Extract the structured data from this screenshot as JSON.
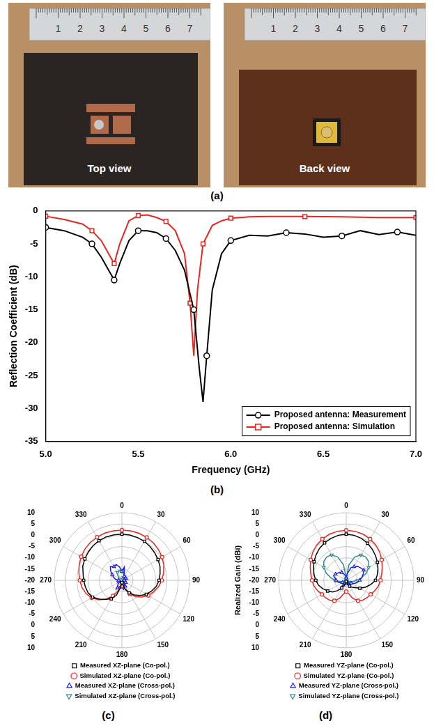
{
  "figure": {
    "panel_a": {
      "title": "(a)",
      "photos": [
        {
          "caption": "Top view",
          "ruler_labels": [
            1,
            2,
            3,
            4,
            5,
            6,
            7
          ]
        },
        {
          "caption": "Back view",
          "ruler_labels": [
            1,
            2,
            3,
            4,
            5,
            6,
            7
          ]
        }
      ]
    }
  },
  "chart_data": [
    {
      "type": "line",
      "title": "(b)",
      "xlabel": "Frequency (GHz)",
      "ylabel": "Reflection Coefficient (dB)",
      "xlim": [
        5,
        7
      ],
      "xticks": [
        {
          "value": 5,
          "label": "5.0"
        },
        {
          "value": 5.5,
          "label": "5.5"
        },
        {
          "value": 6,
          "label": "6.0"
        },
        {
          "value": 6.5,
          "label": "6.5"
        },
        {
          "value": 7,
          "label": "7.0"
        }
      ],
      "ylim": [
        -35,
        0
      ],
      "yticks": [
        -35,
        -30,
        -25,
        -20,
        -15,
        -10,
        -5,
        0
      ],
      "grid": false,
      "legend": "lower right",
      "series": [
        {
          "name": "Proposed antenna: Measurement",
          "color": "#000000",
          "marker": "circle",
          "line_style": "solid",
          "x": [
            5.0,
            5.1,
            5.2,
            5.25,
            5.3,
            5.35,
            5.37,
            5.4,
            5.45,
            5.5,
            5.55,
            5.6,
            5.65,
            5.7,
            5.75,
            5.8,
            5.83,
            5.85,
            5.87,
            5.9,
            5.95,
            6.0,
            6.1,
            6.2,
            6.3,
            6.4,
            6.5,
            6.6,
            6.7,
            6.8,
            6.9,
            7.0
          ],
          "values": [
            -2.5,
            -3,
            -4,
            -5,
            -7,
            -9.5,
            -10.5,
            -8,
            -4.5,
            -3,
            -3,
            -3.3,
            -4.2,
            -6,
            -9,
            -15,
            -24,
            -29,
            -22,
            -12,
            -6.5,
            -4.5,
            -3.7,
            -3.8,
            -3.3,
            -3.5,
            -4,
            -3.8,
            -3,
            -3.6,
            -3.2,
            -3.7
          ]
        },
        {
          "name": "Proposed antenna: Simulation",
          "color": "#e8261e",
          "marker": "square",
          "line_style": "solid",
          "x": [
            5.0,
            5.1,
            5.2,
            5.25,
            5.3,
            5.35,
            5.37,
            5.4,
            5.45,
            5.5,
            5.55,
            5.6,
            5.65,
            5.7,
            5.75,
            5.78,
            5.8,
            5.82,
            5.85,
            5.9,
            5.95,
            6.0,
            6.1,
            6.2,
            6.4,
            6.6,
            6.8,
            7.0
          ],
          "values": [
            -0.8,
            -1.3,
            -2,
            -3,
            -4.5,
            -7,
            -8,
            -5,
            -1.5,
            -0.7,
            -0.6,
            -1,
            -1.6,
            -3,
            -6.5,
            -14,
            -22,
            -12,
            -5,
            -2.2,
            -1.5,
            -1.1,
            -0.9,
            -0.85,
            -0.85,
            -0.9,
            -1.0,
            -1.0
          ]
        }
      ]
    },
    {
      "type": "radar",
      "title": "(c)",
      "categories": [
        "0",
        null,
        null,
        "30",
        null,
        null,
        "60",
        null,
        null,
        "90",
        null,
        null,
        "120",
        null,
        null,
        "150",
        null,
        null,
        "180",
        null,
        null,
        "210",
        null,
        null,
        "240",
        null,
        null,
        "270",
        null,
        null,
        "300",
        null,
        null,
        "330",
        null,
        null
      ],
      "ylim": [
        -20,
        10
      ],
      "yticks": [
        -20,
        -15,
        -10,
        -5,
        0,
        5,
        10
      ],
      "grid": true,
      "legend": "bottom",
      "series": [
        {
          "name": "Measured XZ-plane (Co-pol.)",
          "color": "#000000",
          "marker": "square",
          "line_style": "solid",
          "values": [
            0.5,
            0.4,
            0.2,
            0,
            -0.5,
            -1,
            -1.5,
            -2,
            -2.8,
            -3.5,
            -4.5,
            -6,
            -7.5,
            -9.5,
            -11.5,
            -13.5,
            -16,
            -18,
            -19,
            -17,
            -13,
            -10.5,
            -9,
            -7,
            -5,
            -4,
            -3.5,
            -3,
            -2.5,
            -1.5,
            -1,
            -0.5,
            0,
            0.3,
            0.5,
            0.5
          ]
        },
        {
          "name": "Simulated XZ-plane (Co-pol.)",
          "color": "#e8261e",
          "marker": "circle",
          "line_style": "solid",
          "values": [
            2.3,
            2.3,
            2.2,
            2.0,
            1.7,
            1.2,
            0.6,
            -0.2,
            -1.2,
            -2.3,
            -3.5,
            -5,
            -6.5,
            -8.5,
            -10.5,
            -13,
            -15.5,
            -17,
            -17.5,
            -17,
            -15,
            -12,
            -9,
            -6.5,
            -4.5,
            -3,
            -2,
            -1.3,
            -0.6,
            0.2,
            0.9,
            1.5,
            1.9,
            2.1,
            2.3,
            2.3
          ]
        },
        {
          "name": "Measured XZ-plane (Cross-pol.)",
          "color": "#1f1fe0",
          "marker": "triangle",
          "line_style": "solid",
          "values": [
            -16,
            -14,
            -17,
            -18,
            -17.5,
            -18.5,
            -18,
            -19,
            -18,
            -19,
            -18.5,
            -19,
            -18,
            -19,
            -18.5,
            -17,
            -18,
            -16,
            -17,
            -16.5,
            -17,
            -16,
            -17,
            -18,
            -18.5,
            -19,
            -18,
            -18.5,
            -17,
            -16,
            -15,
            -13.5,
            -12,
            -13,
            -12.5,
            -14
          ]
        },
        {
          "name": "Simulated XZ-plane (Cross-pol.)",
          "color": "#2f8f8a",
          "marker": "triangle_down",
          "line_style": "solid",
          "values": [
            -16,
            -16.5,
            -17.5,
            -18.5,
            -19,
            -19.5,
            -19.5,
            -19.8,
            -19.8,
            -19.8,
            -19.8,
            -19.8,
            -19.5,
            -19.5,
            -19.3,
            -19.3,
            -19.5,
            -19.2,
            -19,
            -19.2,
            -19.5,
            -19.3,
            -19.5,
            -19.8,
            -19.8,
            -19.8,
            -19.8,
            -19.8,
            -19.5,
            -19.5,
            -19,
            -18.5,
            -17,
            -16,
            -15.5,
            -15.5
          ]
        }
      ]
    },
    {
      "type": "radar",
      "title": "(d)",
      "ylabel": "Realized Gain (dBi)",
      "categories": [
        "0",
        null,
        null,
        "30",
        null,
        null,
        "60",
        null,
        null,
        "90",
        null,
        null,
        "120",
        null,
        null,
        "150",
        null,
        null,
        "180",
        null,
        null,
        "210",
        null,
        null,
        "240",
        null,
        null,
        "270",
        null,
        null,
        "300",
        null,
        null,
        "330",
        null,
        null
      ],
      "ylim": [
        -20,
        10
      ],
      "yticks": [
        -20,
        -15,
        -10,
        -5,
        0,
        5,
        10
      ],
      "grid": true,
      "legend": "bottom",
      "series": [
        {
          "name": "Measured YZ-plane (Co-pol.)",
          "color": "#000000",
          "marker": "square",
          "line_style": "solid",
          "values": [
            0.5,
            0.3,
            -0.2,
            -1,
            -2,
            -3,
            -4,
            -5,
            -6,
            -7,
            -9,
            -11,
            -13,
            -15,
            -16,
            -17,
            -18,
            -19,
            -19.5,
            -19,
            -18,
            -16,
            -14,
            -12,
            -10.5,
            -9,
            -7.5,
            -6.5,
            -5.5,
            -4.5,
            -3.5,
            -2.5,
            -1.5,
            -0.8,
            -0.2,
            0.3
          ]
        },
        {
          "name": "Simulated YZ-plane (Co-pol.)",
          "color": "#e8261e",
          "marker": "circle",
          "line_style": "solid",
          "values": [
            2.2,
            2.1,
            1.8,
            1.2,
            0.4,
            -0.6,
            -1.8,
            -3,
            -4,
            -4.8,
            -5.5,
            -6.5,
            -7.5,
            -8,
            -8.5,
            -9.5,
            -11.5,
            -14,
            -15,
            -14,
            -11.5,
            -9.5,
            -8.5,
            -8,
            -7.5,
            -6.5,
            -5.5,
            -4.8,
            -4,
            -3,
            -1.8,
            -0.6,
            0.4,
            1.2,
            1.8,
            2.1
          ]
        },
        {
          "name": "Measured YZ-plane (Cross-pol.)",
          "color": "#1f1fe0",
          "marker": "triangle",
          "line_style": "solid",
          "values": [
            -19,
            -17,
            -14,
            -13,
            -12,
            -11.5,
            -11,
            -12,
            -13,
            -14,
            -15,
            -16,
            -17.5,
            -18,
            -18.5,
            -19,
            -18,
            -19,
            -18.5,
            -19,
            -18,
            -17.5,
            -18,
            -18.5,
            -18,
            -17,
            -16,
            -15.5,
            -15,
            -14,
            -14.5,
            -15,
            -15.5,
            -16,
            -17,
            -18
          ]
        },
        {
          "name": "Simulated YZ-plane (Cross-pol.)",
          "color": "#2f8f8a",
          "marker": "triangle_down",
          "line_style": "solid",
          "values": [
            -19,
            -13,
            -9,
            -7,
            -6.5,
            -7,
            -8.5,
            -10.5,
            -13,
            -15,
            -17,
            -18.5,
            -19.5,
            -19.5,
            -19,
            -18.5,
            -18.5,
            -19,
            -19.5,
            -19,
            -18.5,
            -18.5,
            -19,
            -19.5,
            -19.5,
            -18.5,
            -17,
            -15,
            -13,
            -10.5,
            -8.5,
            -7,
            -6.5,
            -7,
            -9,
            -13
          ]
        }
      ]
    }
  ]
}
